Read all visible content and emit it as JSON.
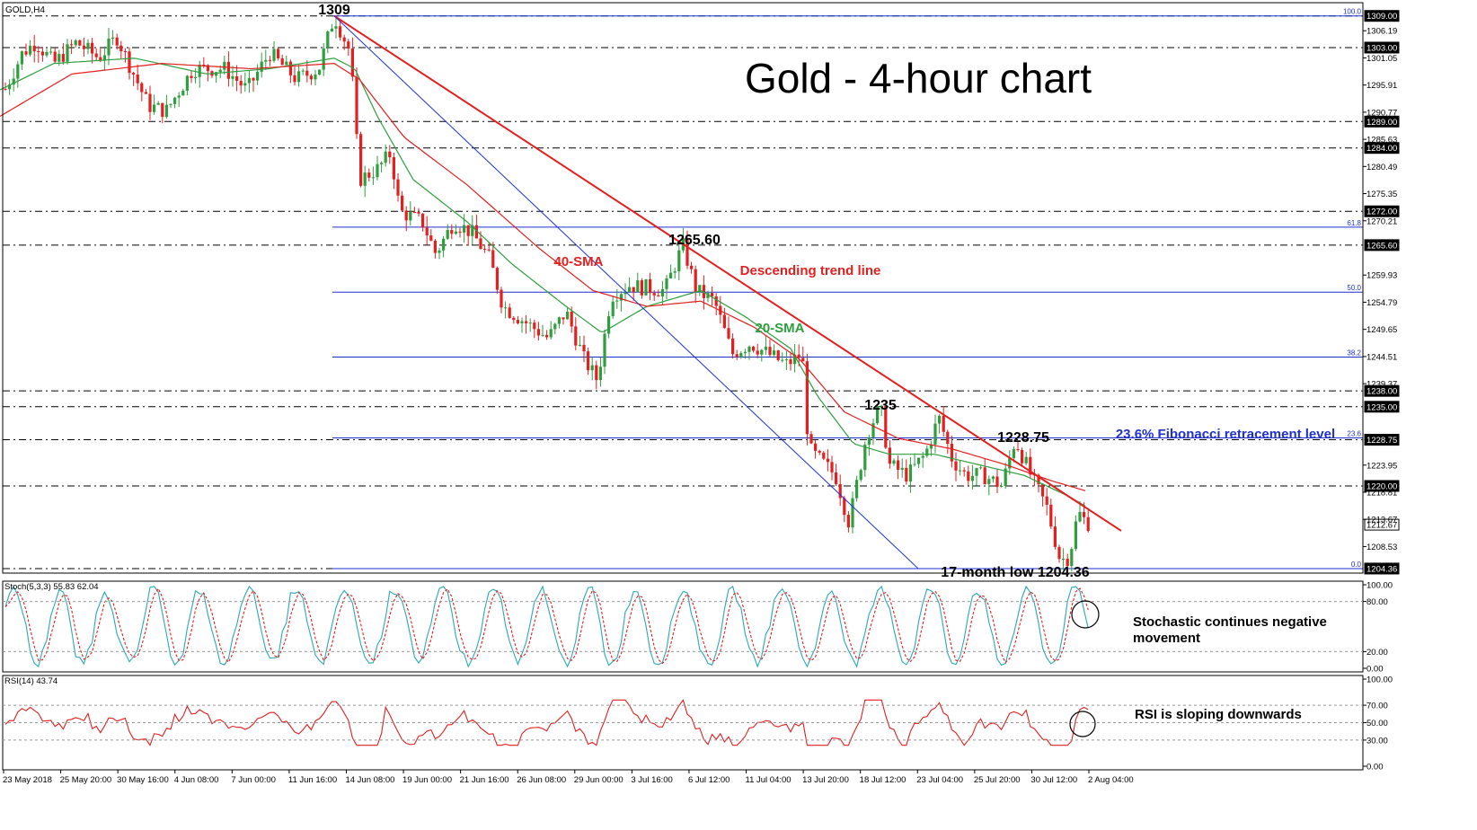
{
  "symbol_label": "GOLD,H4",
  "chart_data": [
    {
      "type": "candlestick",
      "title": "Gold - 4-hour chart",
      "symbol": "GOLD,H4",
      "ylim": [
        1203.5,
        1311.5
      ],
      "y_ticks": [
        "1306.19",
        "1301.05",
        "1295.91",
        "1290.77",
        "1285.63",
        "1280.49",
        "1275.35",
        "1270.21",
        "1259.93",
        "1254.79",
        "1249.65",
        "1244.51",
        "1239.37",
        "1223.95",
        "1218.81",
        "1213.67",
        "1208.53"
      ],
      "x_labels": [
        "23 May 2018",
        "25 May 20:00",
        "30 May 16:00",
        "4 Jun 08:00",
        "7 Jun 00:00",
        "11 Jun 16:00",
        "14 Jun 08:00",
        "19 Jun 00:00",
        "21 Jun 16:00",
        "26 Jun 08:00",
        "29 Jun 00:00",
        "3 Jul 16:00",
        "6 Jul 12:00",
        "11 Jul 04:00",
        "13 Jul 20:00",
        "18 Jul 12:00",
        "23 Jul 04:00",
        "25 Jul 20:00",
        "30 Jul 12:00",
        "2 Aug 04:00"
      ],
      "price_path": [
        [
          0,
          1293
        ],
        [
          25,
          1302
        ],
        [
          40,
          1304
        ],
        [
          60,
          1300
        ],
        [
          85,
          1304
        ],
        [
          110,
          1301
        ],
        [
          130,
          1305
        ],
        [
          165,
          1292
        ],
        [
          185,
          1291
        ],
        [
          215,
          1299
        ],
        [
          250,
          1299
        ],
        [
          275,
          1295
        ],
        [
          300,
          1302
        ],
        [
          330,
          1297
        ],
        [
          355,
          1299
        ],
        [
          372,
          1309
        ],
        [
          390,
          1302
        ],
        [
          400,
          1278
        ],
        [
          420,
          1280
        ],
        [
          435,
          1283
        ],
        [
          445,
          1272
        ],
        [
          470,
          1270
        ],
        [
          485,
          1264
        ],
        [
          505,
          1270
        ],
        [
          525,
          1268
        ],
        [
          545,
          1263
        ],
        [
          560,
          1254
        ],
        [
          585,
          1251
        ],
        [
          610,
          1248
        ],
        [
          630,
          1253
        ],
        [
          650,
          1244
        ],
        [
          665,
          1240
        ],
        [
          680,
          1256
        ],
        [
          700,
          1258
        ],
        [
          740,
          1257
        ],
        [
          760,
          1265.6
        ],
        [
          775,
          1257
        ],
        [
          795,
          1255
        ],
        [
          815,
          1245
        ],
        [
          835,
          1247
        ],
        [
          855,
          1245
        ],
        [
          875,
          1243
        ],
        [
          893,
          1245
        ],
        [
          900,
          1227
        ],
        [
          930,
          1222
        ],
        [
          945,
          1213
        ],
        [
          965,
          1230
        ],
        [
          980,
          1235
        ],
        [
          990,
          1224
        ],
        [
          1010,
          1222
        ],
        [
          1030,
          1226
        ],
        [
          1045,
          1233
        ],
        [
          1060,
          1225
        ],
        [
          1075,
          1222
        ],
        [
          1095,
          1222
        ],
        [
          1115,
          1220
        ],
        [
          1130,
          1228.75
        ],
        [
          1150,
          1221
        ],
        [
          1165,
          1216
        ],
        [
          1180,
          1206
        ],
        [
          1190,
          1206.5
        ],
        [
          1200,
          1215
        ],
        [
          1210,
          1213
        ]
      ],
      "horizontal_levels": [
        {
          "value": 1309.0,
          "label": "1309.00",
          "style": "dashdot"
        },
        {
          "value": 1303.0,
          "label": "1303.00",
          "style": "dashdot"
        },
        {
          "value": 1289.0,
          "label": "1289.00",
          "style": "dashdot"
        },
        {
          "value": 1284.0,
          "label": "1284.00",
          "style": "dashdot"
        },
        {
          "value": 1272.0,
          "label": "1272.00",
          "style": "dashdot"
        },
        {
          "value": 1265.6,
          "label": "1265.60",
          "style": "dashdot"
        },
        {
          "value": 1238.0,
          "label": "1238.00",
          "style": "dashdot"
        },
        {
          "value": 1235.0,
          "label": "1235.00",
          "style": "dashdot"
        },
        {
          "value": 1228.75,
          "label": "1228.75",
          "style": "dashdot"
        },
        {
          "value": 1220.0,
          "label": "1220.00",
          "style": "dashdot"
        },
        {
          "value": 1212.67,
          "label": "1212.67",
          "style": "current"
        },
        {
          "value": 1204.36,
          "label": "1204.36",
          "style": "dashdot"
        }
      ],
      "fibonacci": [
        {
          "level": "100.0",
          "value": 1309.0
        },
        {
          "level": "61.8",
          "value": 1269.0
        },
        {
          "level": "50.0",
          "value": 1256.7
        },
        {
          "level": "38.2",
          "value": 1244.4
        },
        {
          "level": "23.6",
          "value": 1229.1
        },
        {
          "level": "0.0",
          "value": 1204.36
        }
      ],
      "sma20_anchors": [
        [
          0,
          1295
        ],
        [
          60,
          1300
        ],
        [
          150,
          1301
        ],
        [
          230,
          1298
        ],
        [
          300,
          1299
        ],
        [
          372,
          1301
        ],
        [
          395,
          1299
        ],
        [
          420,
          1290
        ],
        [
          460,
          1278
        ],
        [
          520,
          1270
        ],
        [
          570,
          1262
        ],
        [
          630,
          1254
        ],
        [
          670,
          1249
        ],
        [
          720,
          1254
        ],
        [
          780,
          1257
        ],
        [
          830,
          1252
        ],
        [
          880,
          1246
        ],
        [
          910,
          1237
        ],
        [
          950,
          1228
        ],
        [
          990,
          1226
        ],
        [
          1040,
          1226
        ],
        [
          1090,
          1224
        ],
        [
          1140,
          1222
        ],
        [
          1190,
          1218
        ],
        [
          1210,
          1216
        ]
      ],
      "sma40_anchors": [
        [
          0,
          1290
        ],
        [
          80,
          1298
        ],
        [
          180,
          1300
        ],
        [
          280,
          1299
        ],
        [
          372,
          1300
        ],
        [
          400,
          1297
        ],
        [
          450,
          1286
        ],
        [
          520,
          1277
        ],
        [
          600,
          1265
        ],
        [
          660,
          1257
        ],
        [
          720,
          1254
        ],
        [
          780,
          1255
        ],
        [
          840,
          1250
        ],
        [
          890,
          1244
        ],
        [
          940,
          1234
        ],
        [
          1000,
          1229
        ],
        [
          1060,
          1227
        ],
        [
          1120,
          1224
        ],
        [
          1170,
          1221
        ],
        [
          1210,
          1219
        ]
      ],
      "annotations": [
        {
          "text": "1309",
          "color": "#000000",
          "bold": true
        },
        {
          "text": "1265.60",
          "color": "#000000",
          "bold": true
        },
        {
          "text": "Descending trend line",
          "color": "#e31f1f",
          "bold": true
        },
        {
          "text": "40-SMA",
          "color": "#e31f1f",
          "bold": true
        },
        {
          "text": "20-SMA",
          "color": "#2e9e3e",
          "bold": true
        },
        {
          "text": "1235",
          "color": "#000000",
          "bold": true
        },
        {
          "text": "1228.75",
          "color": "#000000",
          "bold": true
        },
        {
          "text": "23.6% Fibonacci retracement level",
          "color": "#1f2fd0",
          "bold": true
        },
        {
          "text": "17-month low 1204.36",
          "color": "#000000",
          "bold": true
        }
      ]
    },
    {
      "type": "line",
      "title": "Stoch(5,3,3) 55.83 62.04",
      "ylim": [
        0,
        100
      ],
      "y_ticks": [
        "100.00",
        "80.00",
        "20.00",
        "0.00"
      ],
      "series": [
        {
          "name": "%K",
          "color": "#2aa8b8",
          "values": []
        },
        {
          "name": "%D",
          "color": "#e31f1f",
          "values": []
        }
      ],
      "annotation": "Stochastic continues negative\nmovement",
      "annotation_lines": [
        "Stochastic continues negative",
        "movement"
      ]
    },
    {
      "type": "line",
      "title": "RSI(14) 43.74",
      "ylim": [
        0,
        100
      ],
      "y_ticks": [
        "100.00",
        "70.00",
        "50.00",
        "30.00",
        "0.00"
      ],
      "series": [
        {
          "name": "RSI",
          "color": "#e31f1f",
          "values": []
        }
      ],
      "annotation": "RSI is sloping downwards"
    }
  ],
  "colors": {
    "up_candle": "#2e9e3e",
    "down_candle": "#e31f1f",
    "trend": "#e31f1f",
    "channel": "#1f2fd0",
    "fib": "#1f2fd0",
    "sma20": "#2e9e3e",
    "sma40": "#e31f1f",
    "stoch_k": "#2aa8b8",
    "stoch_d": "#e31f1f",
    "rsi": "#e31f1f"
  }
}
